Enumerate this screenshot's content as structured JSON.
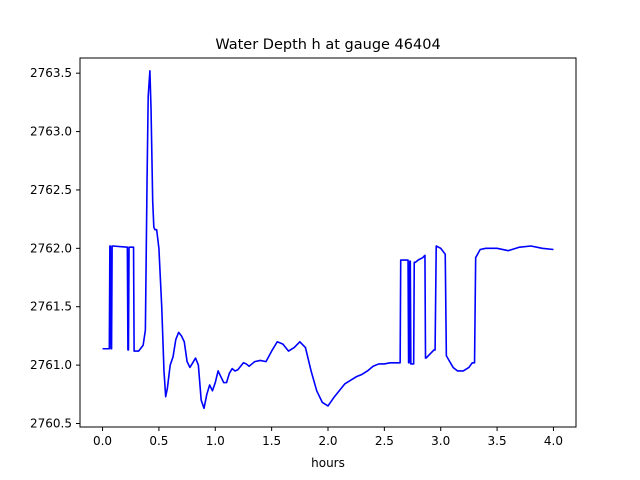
{
  "chart_data": {
    "type": "line",
    "title": "Water Depth h at gauge 46404",
    "xlabel": "hours",
    "ylabel": "",
    "xlim": [
      -0.2,
      4.2
    ],
    "ylim": [
      2760.47,
      2763.63
    ],
    "x_ticks": [
      0.0,
      0.5,
      1.0,
      1.5,
      2.0,
      2.5,
      3.0,
      3.5,
      4.0
    ],
    "x_tick_labels": [
      "0.0",
      "0.5",
      "1.0",
      "1.5",
      "2.0",
      "2.5",
      "3.0",
      "3.5",
      "4.0"
    ],
    "y_ticks": [
      2760.5,
      2761.0,
      2761.5,
      2762.0,
      2762.5,
      2763.0,
      2763.5
    ],
    "y_tick_labels": [
      "2760.5",
      "2761.0",
      "2761.5",
      "2762.0",
      "2762.5",
      "2763.0",
      "2763.5"
    ],
    "grid": false,
    "series": [
      {
        "name": "",
        "color": "#0000ff",
        "x": [
          0.0,
          0.06,
          0.065,
          0.07,
          0.075,
          0.08,
          0.085,
          0.09,
          0.22,
          0.225,
          0.23,
          0.235,
          0.24,
          0.245,
          0.25,
          0.275,
          0.28,
          0.285,
          0.32,
          0.36,
          0.38,
          0.395,
          0.405,
          0.42,
          0.43,
          0.445,
          0.455,
          0.465,
          0.48,
          0.5,
          0.525,
          0.545,
          0.56,
          0.575,
          0.6,
          0.625,
          0.65,
          0.675,
          0.7,
          0.725,
          0.75,
          0.775,
          0.8,
          0.825,
          0.85,
          0.875,
          0.9,
          0.925,
          0.95,
          0.975,
          1.0,
          1.025,
          1.05,
          1.075,
          1.1,
          1.125,
          1.15,
          1.175,
          1.2,
          1.225,
          1.25,
          1.275,
          1.3,
          1.325,
          1.35,
          1.4,
          1.45,
          1.5,
          1.55,
          1.6,
          1.65,
          1.7,
          1.75,
          1.8,
          1.85,
          1.9,
          1.95,
          2.0,
          2.05,
          2.1,
          2.15,
          2.2,
          2.25,
          2.3,
          2.35,
          2.4,
          2.45,
          2.5,
          2.55,
          2.6,
          2.64,
          2.645,
          2.71,
          2.715,
          2.72,
          2.725,
          2.73,
          2.735,
          2.76,
          2.765,
          2.77,
          2.775,
          2.8,
          2.84,
          2.86,
          2.865,
          2.87,
          2.94,
          2.95,
          2.96,
          3.0,
          3.04,
          3.05,
          3.08,
          3.11,
          3.15,
          3.2,
          3.25,
          3.28,
          3.3,
          3.31,
          3.35,
          3.4,
          3.5,
          3.6,
          3.7,
          3.8,
          3.9,
          4.0
        ],
        "y": [
          2761.14,
          2761.14,
          2762.02,
          2762.02,
          2761.14,
          2761.14,
          2762.02,
          2762.02,
          2762.01,
          2761.13,
          2761.13,
          2762.01,
          2762.01,
          2762.01,
          2762.01,
          2762.01,
          2761.12,
          2761.12,
          2761.12,
          2761.17,
          2761.3,
          2762.6,
          2763.3,
          2763.52,
          2763.2,
          2762.4,
          2762.18,
          2762.16,
          2762.16,
          2762.0,
          2761.5,
          2760.95,
          2760.73,
          2760.8,
          2761.0,
          2761.07,
          2761.22,
          2761.28,
          2761.25,
          2761.2,
          2761.03,
          2760.98,
          2761.02,
          2761.06,
          2761.0,
          2760.7,
          2760.63,
          2760.75,
          2760.83,
          2760.78,
          2760.85,
          2760.95,
          2760.9,
          2760.85,
          2760.85,
          2760.93,
          2760.97,
          2760.95,
          2760.96,
          2760.99,
          2761.02,
          2761.01,
          2760.99,
          2761.01,
          2761.03,
          2761.04,
          2761.03,
          2761.12,
          2761.2,
          2761.18,
          2761.12,
          2761.15,
          2761.2,
          2761.15,
          2760.95,
          2760.78,
          2760.68,
          2760.65,
          2760.72,
          2760.78,
          2760.84,
          2760.87,
          2760.9,
          2760.92,
          2760.95,
          2760.99,
          2761.01,
          2761.01,
          2761.02,
          2761.02,
          2761.02,
          2761.9,
          2761.9,
          2761.02,
          2761.02,
          2761.89,
          2761.89,
          2761.01,
          2761.01,
          2761.88,
          2761.88,
          2761.88,
          2761.9,
          2761.92,
          2761.94,
          2761.06,
          2761.06,
          2761.13,
          2761.13,
          2762.02,
          2762.0,
          2761.95,
          2761.08,
          2761.03,
          2760.98,
          2760.95,
          2760.95,
          2760.98,
          2761.02,
          2761.02,
          2761.92,
          2761.99,
          2762.0,
          2762.0,
          2761.98,
          2762.01,
          2762.02,
          2762.0,
          2761.99
        ]
      }
    ]
  }
}
